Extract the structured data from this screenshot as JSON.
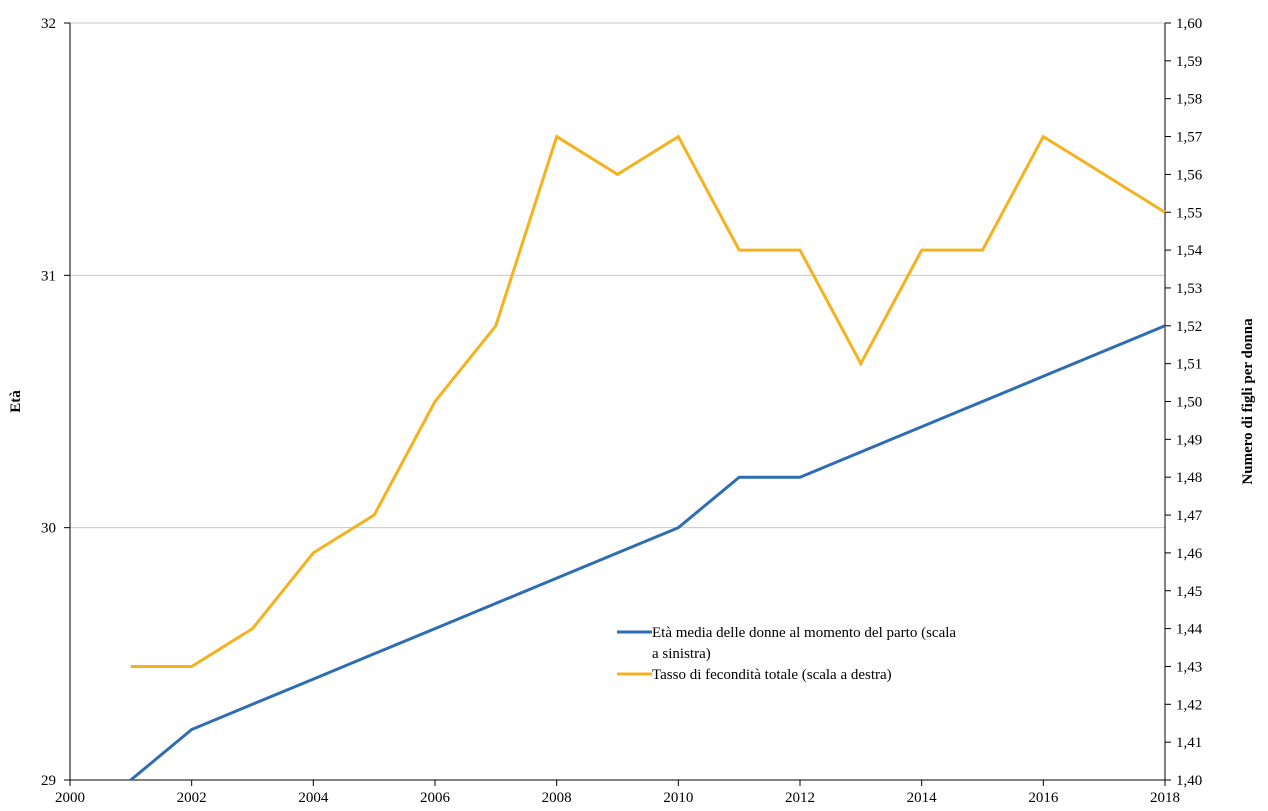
{
  "chart_data": {
    "type": "line",
    "title": "",
    "xlabel": "",
    "ylabel_left": "Età",
    "ylabel_right": "Numero di figli per donna",
    "xlim": [
      2000,
      2018
    ],
    "ylim_left": [
      29,
      32
    ],
    "ylim_right": [
      1.4,
      1.6
    ],
    "x_ticks": [
      "2000",
      "2002",
      "2004",
      "2006",
      "2008",
      "2010",
      "2012",
      "2014",
      "2016",
      "2018"
    ],
    "y_left_ticks": [
      "29",
      "30",
      "31",
      "32"
    ],
    "y_right_ticks": [
      "1,40",
      "1,41",
      "1,42",
      "1,43",
      "1,44",
      "1,45",
      "1,46",
      "1,47",
      "1,48",
      "1,49",
      "1,50",
      "1,51",
      "1,52",
      "1,53",
      "1,54",
      "1,55",
      "1,56",
      "1,57",
      "1,58",
      "1,59",
      "1,60"
    ],
    "grid": "horizontal",
    "legend_position": "center-right",
    "series": [
      {
        "name": "Età media delle donne al momento del parto (scala a sinistra)",
        "legend_lines": [
          "Età media delle donne al momento del parto (scala",
          "a sinistra)"
        ],
        "axis": "left",
        "color": "#2E6DB4",
        "x": [
          2001,
          2002,
          2003,
          2004,
          2005,
          2006,
          2007,
          2008,
          2009,
          2010,
          2011,
          2012,
          2013,
          2014,
          2015,
          2016,
          2017,
          2018
        ],
        "values": [
          29.0,
          29.2,
          29.3,
          29.4,
          29.5,
          29.6,
          29.7,
          29.8,
          29.9,
          30.0,
          30.2,
          30.2,
          30.3,
          30.4,
          30.5,
          30.6,
          30.7,
          30.8
        ]
      },
      {
        "name": "Tasso di fecondità totale (scala a destra)",
        "legend_lines": [
          "Tasso di fecondità totale (scala a destra)"
        ],
        "axis": "right",
        "color": "#F5B21E",
        "x": [
          2001,
          2002,
          2003,
          2004,
          2005,
          2006,
          2007,
          2008,
          2009,
          2010,
          2011,
          2012,
          2013,
          2014,
          2015,
          2016,
          2017,
          2018
        ],
        "values": [
          1.43,
          1.43,
          1.44,
          1.46,
          1.47,
          1.5,
          1.52,
          1.57,
          1.56,
          1.57,
          1.54,
          1.54,
          1.51,
          1.54,
          1.54,
          1.57,
          1.56,
          1.55
        ]
      }
    ]
  }
}
